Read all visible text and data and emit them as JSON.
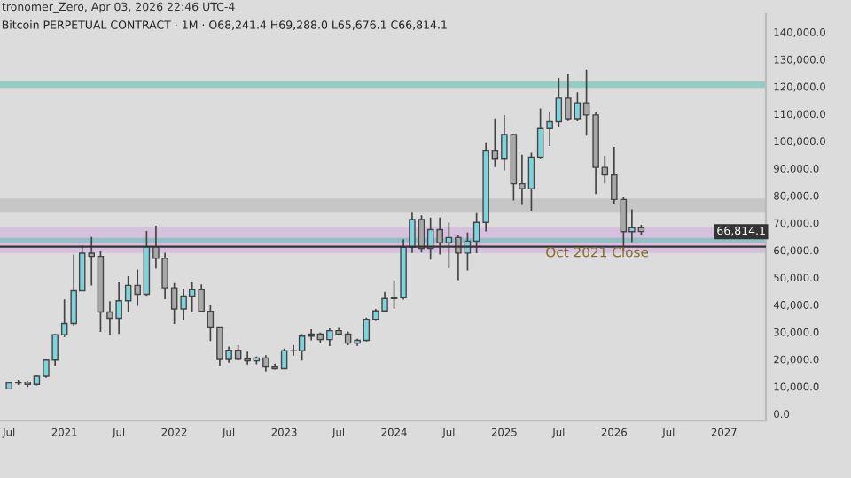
{
  "chart_data": {
    "type": "candlestick",
    "title": "Bitcoin PERPETUAL CONTRACT · 1M · O68,241.4 H69,288.0 L65,676.1 C66,814.1",
    "annotations": [
      "tronomer_Zero, Apr 03, 2026 22:46 UTC-4",
      "66,814.1"
    ],
    "x": [
      "2020-07",
      "2020-08",
      "2020-09",
      "2020-10",
      "2020-11",
      "2020-12",
      "2021-01",
      "2021-02",
      "2021-03",
      "2021-04",
      "2021-05",
      "2021-06",
      "2021-07",
      "2021-08",
      "2021-09",
      "2021-10",
      "2021-11",
      "2021-12",
      "2022-01",
      "2022-02",
      "2022-03",
      "2022-04",
      "2022-05",
      "2022-06",
      "2022-07",
      "2022-08",
      "2022-09",
      "2022-10",
      "2022-11",
      "2022-12",
      "2023-01",
      "2023-02",
      "2023-03",
      "2023-04",
      "2023-05",
      "2023-06",
      "2023-07",
      "2023-08",
      "2023-09",
      "2023-10",
      "2023-11",
      "2023-12",
      "2024-01",
      "2024-02",
      "2024-03",
      "2024-04",
      "2024-05",
      "2024-06",
      "2024-07",
      "2024-08",
      "2024-09",
      "2024-10",
      "2024-11",
      "2024-12",
      "2025-01",
      "2025-02",
      "2025-03",
      "2025-04",
      "2025-05",
      "2025-06",
      "2025-07",
      "2025-08",
      "2025-09",
      "2025-10",
      "2025-11",
      "2025-12",
      "2026-01",
      "2026-02",
      "2026-03",
      "2026-04"
    ],
    "ohlc": [
      [
        9135,
        11444,
        8893,
        11351
      ],
      [
        11351,
        12486,
        10525,
        11655
      ],
      [
        11655,
        12080,
        9825,
        10777
      ],
      [
        10777,
        14100,
        10374,
        13791
      ],
      [
        13791,
        19944,
        13195,
        19701
      ],
      [
        19701,
        29300,
        17572,
        28992
      ],
      [
        28992,
        41950,
        28130,
        33114
      ],
      [
        33114,
        58352,
        32296,
        45137
      ],
      [
        45137,
        61788,
        44950,
        58918
      ],
      [
        58918,
        64854,
        47044,
        57750
      ],
      [
        57750,
        59600,
        30000,
        37332
      ],
      [
        37332,
        41330,
        28805,
        35041
      ],
      [
        35041,
        48168,
        29278,
        41461
      ],
      [
        41461,
        50500,
        37332,
        47100
      ],
      [
        47100,
        52920,
        39600,
        43824
      ],
      [
        43824,
        67000,
        43283,
        61318
      ],
      [
        61318,
        69000,
        53256,
        57000
      ],
      [
        57000,
        59120,
        42000,
        46216
      ],
      [
        46216,
        47990,
        32917,
        38466
      ],
      [
        38466,
        45821,
        34322,
        43160
      ],
      [
        43160,
        48190,
        37155,
        45510
      ],
      [
        45510,
        47444,
        37578,
        37630
      ],
      [
        37630,
        40023,
        26700,
        31801
      ],
      [
        31801,
        31982,
        17622,
        19942
      ],
      [
        19942,
        24668,
        18782,
        23293
      ],
      [
        23293,
        25211,
        19520,
        20050
      ],
      [
        20050,
        22800,
        18125,
        19422
      ],
      [
        19422,
        20988,
        18190,
        20490
      ],
      [
        20490,
        21480,
        15476,
        17164
      ],
      [
        17164,
        18387,
        16256,
        16542
      ],
      [
        16542,
        23960,
        16499,
        23125
      ],
      [
        23125,
        25250,
        21351,
        23142
      ],
      [
        23142,
        29184,
        19549,
        28465
      ],
      [
        28465,
        31000,
        26942,
        29233
      ],
      [
        29233,
        29820,
        25811,
        27210
      ],
      [
        27210,
        31431,
        24800,
        30472
      ],
      [
        30472,
        31804,
        28861,
        29232
      ],
      [
        29232,
        30176,
        25166,
        25940
      ],
      [
        25940,
        27483,
        24901,
        26962
      ],
      [
        26962,
        35280,
        26538,
        34639
      ],
      [
        34639,
        38450,
        34097,
        37724
      ],
      [
        37724,
        44729,
        37617,
        42284
      ],
      [
        42284,
        48969,
        38555,
        42580
      ],
      [
        42580,
        64000,
        41884,
        61130
      ],
      [
        61130,
        73777,
        59005,
        71280
      ],
      [
        71280,
        72797,
        59191,
        60672
      ],
      [
        60672,
        71979,
        56552,
        67540
      ],
      [
        67540,
        71997,
        58402,
        62772
      ],
      [
        62772,
        70079,
        53485,
        64628
      ],
      [
        64628,
        65659,
        49000,
        58974
      ],
      [
        58974,
        66498,
        52550,
        63327
      ],
      [
        63327,
        73620,
        58946,
        70215
      ],
      [
        70215,
        99588,
        66835,
        96407
      ],
      [
        96407,
        108353,
        90500,
        93429
      ],
      [
        93429,
        109588,
        89256,
        102430
      ],
      [
        102430,
        102500,
        78258,
        84350
      ],
      [
        84350,
        95000,
        76606,
        82550
      ],
      [
        82550,
        95758,
        74508,
        94172
      ],
      [
        94172,
        111980,
        93377,
        104592
      ],
      [
        104592,
        110530,
        98200,
        107135
      ],
      [
        107135,
        123218,
        105100,
        115764
      ],
      [
        115764,
        124474,
        107350,
        108246
      ],
      [
        108246,
        117900,
        107270,
        114048
      ],
      [
        114048,
        126199,
        102000,
        109609
      ],
      [
        109609,
        110600,
        80600,
        90360
      ],
      [
        90360,
        94600,
        84400,
        87600
      ],
      [
        87600,
        97900,
        77000,
        78600
      ],
      [
        78600,
        79500,
        60000,
        66800
      ],
      [
        66800,
        75000,
        63000,
        68241.4
      ],
      [
        68241.4,
        69288.0,
        65676.1,
        66814.1
      ]
    ],
    "colors": [
      "#7fd3dc",
      "#7fd3dc",
      "#a8a8a8",
      "#7fd3dc",
      "#7fd3dc",
      "#7fd3dc",
      "#7fd3dc",
      "#7fd3dc",
      "#7fd3dc",
      "#a8a8a8",
      "#a8a8a8",
      "#a8a8a8",
      "#7fd3dc",
      "#7fd3dc",
      "#a8a8a8",
      "#7fd3dc",
      "#a8a8a8",
      "#a8a8a8",
      "#a8a8a8",
      "#7fd3dc",
      "#7fd3dc",
      "#a8a8a8",
      "#a8a8a8",
      "#a8a8a8",
      "#7fd3dc",
      "#a8a8a8",
      "#a8a8a8",
      "#7fd3dc",
      "#a8a8a8",
      "#a8a8a8",
      "#7fd3dc",
      "#7fd3dc",
      "#7fd3dc",
      "#7fd3dc",
      "#a8a8a8",
      "#7fd3dc",
      "#a8a8a8",
      "#a8a8a8",
      "#7fd3dc",
      "#7fd3dc",
      "#7fd3dc",
      "#7fd3dc",
      "#7fd3dc",
      "#7fd3dc",
      "#7fd3dc",
      "#a8a8a8",
      "#7fd3dc",
      "#a8a8a8",
      "#7fd3dc",
      "#a8a8a8",
      "#7fd3dc",
      "#7fd3dc",
      "#7fd3dc",
      "#a8a8a8",
      "#7fd3dc",
      "#a8a8a8",
      "#a8a8a8",
      "#7fd3dc",
      "#7fd3dc",
      "#7fd3dc",
      "#7fd3dc",
      "#a8a8a8",
      "#7fd3dc",
      "#a8a8a8",
      "#a8a8a8",
      "#a8a8a8",
      "#a8a8a8",
      "#a8a8a8",
      "#7fd3dc",
      "#a8a8a8"
    ],
    "xlim": [
      "2020-06-01",
      "2027-05-20"
    ],
    "xticks": [
      {
        "value": "2020-07",
        "label": "Jul"
      },
      {
        "value": "2021-01",
        "label": "2021"
      },
      {
        "value": "2021-07",
        "label": "Jul"
      },
      {
        "value": "2022-01",
        "label": "2022"
      },
      {
        "value": "2022-07",
        "label": "Jul"
      },
      {
        "value": "2023-01",
        "label": "2023"
      },
      {
        "value": "2023-07",
        "label": "Jul"
      },
      {
        "value": "2024-01",
        "label": "2024"
      },
      {
        "value": "2024-07",
        "label": "Jul"
      },
      {
        "value": "2025-01",
        "label": "2025"
      },
      {
        "value": "2025-07",
        "label": "Jul"
      },
      {
        "value": "2026-01",
        "label": "2026"
      },
      {
        "value": "2026-07",
        "label": "Jul"
      },
      {
        "value": "2027-01",
        "label": "2027"
      }
    ],
    "ylim": [
      -2500,
      146500
    ],
    "yticks": [
      {
        "value": 0,
        "label": "0.0"
      },
      {
        "value": 10000,
        "label": "10,000.0"
      },
      {
        "value": 20000,
        "label": "20,000.0"
      },
      {
        "value": 30000,
        "label": "30,000.0"
      },
      {
        "value": 40000,
        "label": "40,000.0"
      },
      {
        "value": 50000,
        "label": "50,000.0"
      },
      {
        "value": 60000,
        "label": "60,000.0"
      },
      {
        "value": 70000,
        "label": "70,000.0"
      },
      {
        "value": 80000,
        "label": "80,000.0"
      },
      {
        "value": 90000,
        "label": "90,000.0"
      },
      {
        "value": 100000,
        "label": "100,000.0"
      },
      {
        "value": 110000,
        "label": "110,000.0"
      },
      {
        "value": 120000,
        "label": "120,000.0"
      },
      {
        "value": 130000,
        "label": "130,000.0"
      },
      {
        "value": 140000,
        "label": "140,000.0"
      }
    ],
    "ref_lines": [
      {
        "axis": "y",
        "value": 61300,
        "label": "Oct 2021 Close",
        "color": "#333333"
      }
    ],
    "bands": [
      {
        "axis": "y",
        "from": 59000,
        "to": 68500,
        "color": "#d3a8e0"
      },
      {
        "axis": "y",
        "from": 119500,
        "to": 122000,
        "color": "#5cbfae"
      },
      {
        "axis": "y",
        "from": 62800,
        "to": 64500,
        "color": "#5cbfae"
      },
      {
        "axis": "y",
        "from": 73800,
        "to": 79000,
        "color": "#b4b4b4"
      }
    ],
    "grid": false
  }
}
